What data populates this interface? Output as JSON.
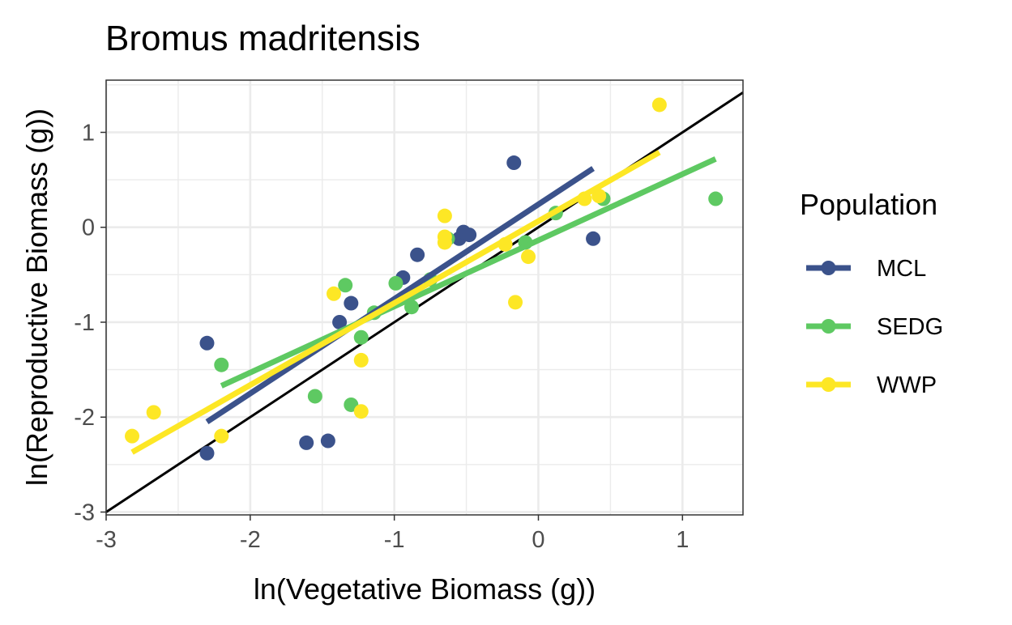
{
  "chart_data": {
    "type": "scatter",
    "title": "Bromus madritensis",
    "xlabel": "ln(Vegetative Biomass (g))",
    "ylabel": "ln(Reproductive Biomass (g))",
    "xlim": [
      -3,
      1.42
    ],
    "ylim": [
      -3.03,
      1.55
    ],
    "x_ticks": [
      -3,
      -2,
      -1,
      0,
      1
    ],
    "x_tick_labels": [
      "-3",
      "-2",
      "-1",
      "0",
      "1"
    ],
    "y_ticks": [
      -3,
      -2,
      -1,
      0,
      1
    ],
    "y_tick_labels": [
      "-3",
      "-2",
      "-1",
      "0",
      "1"
    ],
    "grid": true,
    "reference_line": {
      "slope": 1,
      "intercept": 0,
      "color": "#000000"
    },
    "legend": {
      "title": "Population",
      "placement": "right"
    },
    "series": [
      {
        "name": "MCL",
        "color": "#3b528b",
        "points": [
          [
            -2.3,
            -1.22
          ],
          [
            -2.3,
            -2.38
          ],
          [
            -1.61,
            -2.27
          ],
          [
            -1.46,
            -2.25
          ],
          [
            -1.38,
            -1.0
          ],
          [
            -1.3,
            -0.8
          ],
          [
            -0.94,
            -0.53
          ],
          [
            -0.84,
            -0.29
          ],
          [
            -0.55,
            -0.12
          ],
          [
            -0.52,
            -0.05
          ],
          [
            -0.48,
            -0.08
          ],
          [
            -0.17,
            0.68
          ],
          [
            0.38,
            -0.12
          ]
        ],
        "fit": [
          [
            -2.3,
            -2.05
          ],
          [
            0.38,
            0.62
          ]
        ]
      },
      {
        "name": "SEDG",
        "color": "#5ec962",
        "points": [
          [
            -2.2,
            -1.45
          ],
          [
            -1.55,
            -1.78
          ],
          [
            -1.34,
            -0.61
          ],
          [
            -1.3,
            -1.87
          ],
          [
            -1.23,
            -1.16
          ],
          [
            -1.14,
            -0.9
          ],
          [
            -0.99,
            -0.59
          ],
          [
            -0.88,
            -0.84
          ],
          [
            -0.75,
            -0.55
          ],
          [
            -0.63,
            -0.12
          ],
          [
            -0.09,
            -0.16
          ],
          [
            0.12,
            0.15
          ],
          [
            0.45,
            0.3
          ],
          [
            1.23,
            0.3
          ]
        ],
        "fit": [
          [
            -2.2,
            -1.67
          ],
          [
            1.23,
            0.72
          ]
        ]
      },
      {
        "name": "WWP",
        "color": "#fde725",
        "points": [
          [
            -2.82,
            -2.2
          ],
          [
            -2.67,
            -1.95
          ],
          [
            -2.2,
            -2.2
          ],
          [
            -1.42,
            -0.7
          ],
          [
            -1.23,
            -1.4
          ],
          [
            -1.23,
            -1.94
          ],
          [
            -0.65,
            0.12
          ],
          [
            -0.65,
            -0.1
          ],
          [
            -0.65,
            -0.16
          ],
          [
            -0.23,
            -0.18
          ],
          [
            -0.16,
            -0.79
          ],
          [
            -0.07,
            -0.31
          ],
          [
            0.32,
            0.3
          ],
          [
            0.42,
            0.33
          ],
          [
            0.84,
            1.29
          ]
        ],
        "fit": [
          [
            -2.82,
            -2.37
          ],
          [
            0.84,
            0.79
          ]
        ]
      }
    ]
  }
}
